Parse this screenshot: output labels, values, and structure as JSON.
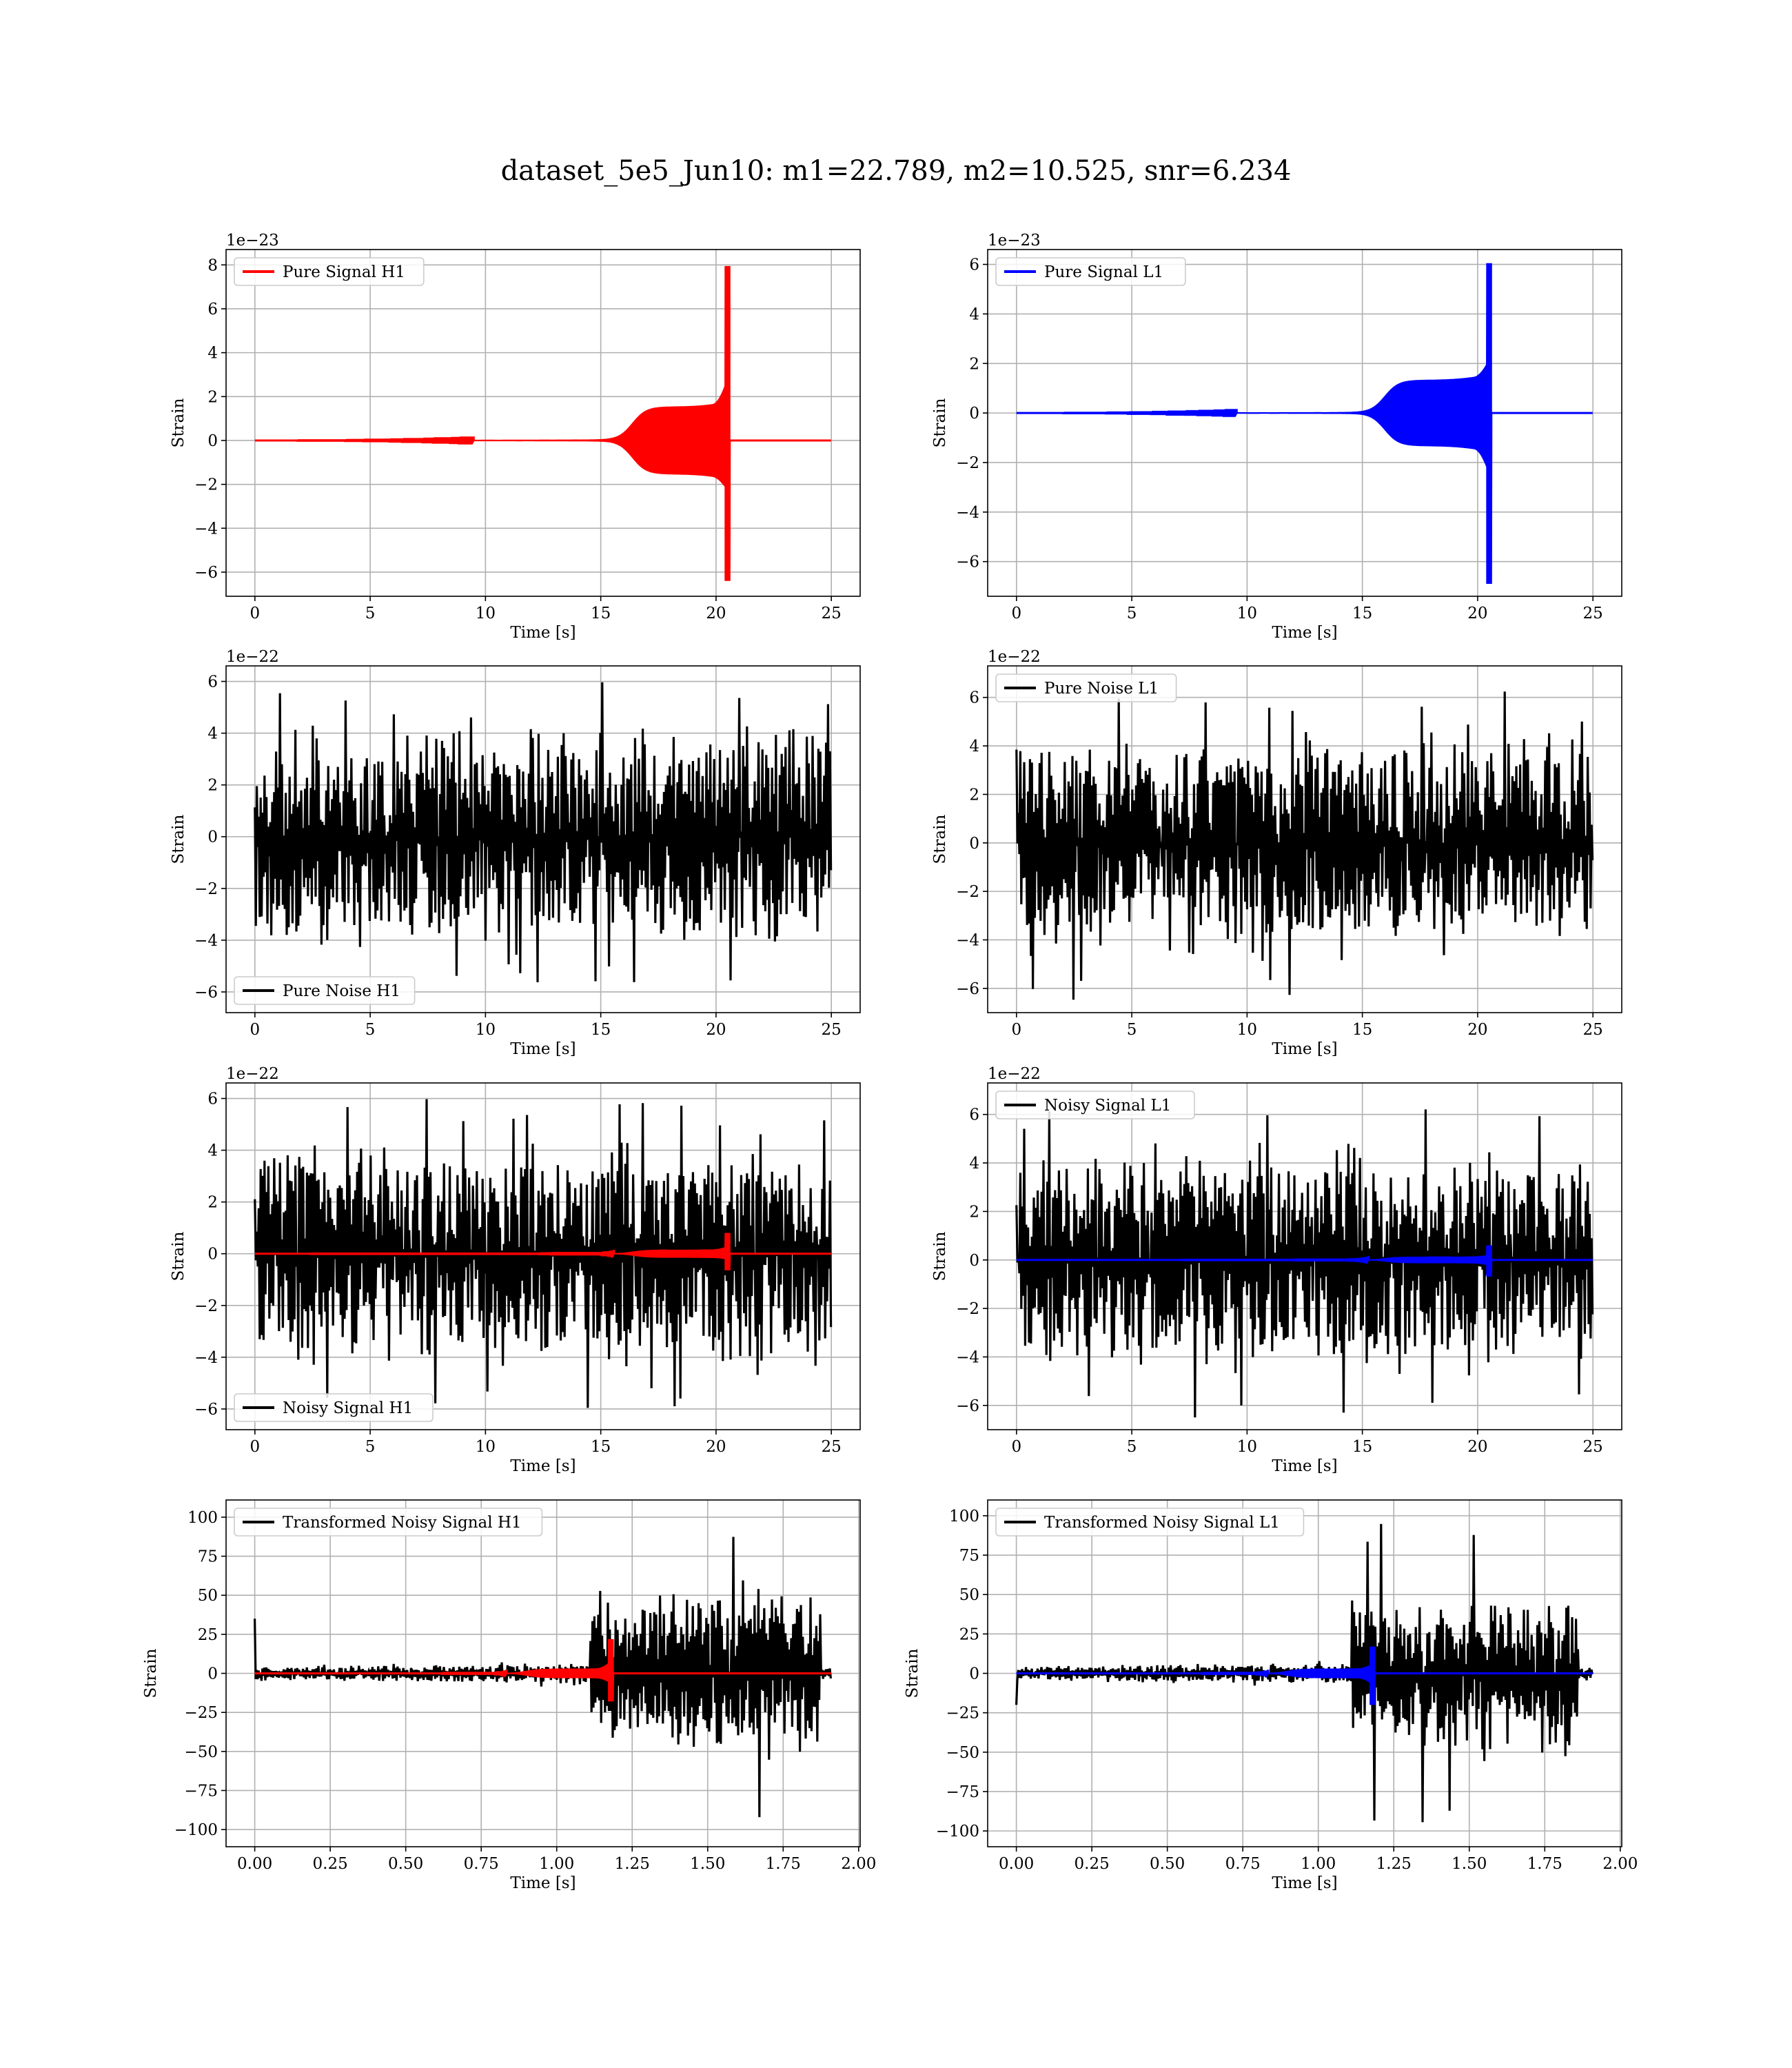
{
  "title": "dataset_5e5_Jun10: m1=22.789, m2=10.525, snr=6.234",
  "colors": {
    "h1_signal": "#ff0000",
    "l1_signal": "#0000ff",
    "noise": "#000000",
    "grid": "#b0b0b0"
  },
  "chart_data": [
    {
      "type": "line",
      "detector": "H1",
      "legend": "Pure Signal H1",
      "legend_loc": "upper left",
      "color": "#ff0000",
      "xlabel": "Time [s]",
      "ylabel": "Strain",
      "offset_label": "1e−23",
      "xlim": [
        -1.25,
        26.25
      ],
      "ylim": [
        -7.1,
        8.7
      ],
      "xticks": [
        0,
        5,
        10,
        15,
        20,
        25
      ],
      "xtick_labels": [
        "0",
        "5",
        "10",
        "15",
        "20",
        "25"
      ],
      "yticks": [
        -6,
        -4,
        -2,
        0,
        2,
        4,
        6,
        8
      ],
      "ytick_labels": [
        "−6",
        "−4",
        "−2",
        "0",
        "2",
        "4",
        "6",
        "8"
      ],
      "grid": true,
      "series": [
        {
          "kind": "chirp",
          "x_start": 0,
          "x_end": 25,
          "onset": 16.4,
          "merger": 20.5,
          "amp_plateau": 1.5,
          "peak_pos": 7.95,
          "peak_neg": -6.4,
          "color": "#ff0000"
        }
      ]
    },
    {
      "type": "line",
      "detector": "L1",
      "legend": "Pure Signal L1",
      "legend_loc": "upper left",
      "color": "#0000ff",
      "xlabel": "Time [s]",
      "ylabel": "Strain",
      "offset_label": "1e−23",
      "xlim": [
        -1.25,
        26.25
      ],
      "ylim": [
        -7.4,
        6.6
      ],
      "xticks": [
        0,
        5,
        10,
        15,
        20,
        25
      ],
      "xtick_labels": [
        "0",
        "5",
        "10",
        "15",
        "20",
        "25"
      ],
      "yticks": [
        -6,
        -4,
        -2,
        0,
        2,
        4,
        6
      ],
      "ytick_labels": [
        "−6",
        "−4",
        "−2",
        "0",
        "2",
        "4",
        "6"
      ],
      "grid": true,
      "series": [
        {
          "kind": "chirp",
          "x_start": 0,
          "x_end": 25,
          "onset": 16.0,
          "merger": 20.5,
          "amp_plateau": 1.3,
          "peak_pos": 6.05,
          "peak_neg": -6.9,
          "color": "#0000ff"
        }
      ]
    },
    {
      "type": "line",
      "detector": "H1",
      "legend": "Pure Noise H1",
      "legend_loc": "lower left",
      "color": "#000000",
      "xlabel": "Time [s]",
      "ylabel": "Strain",
      "offset_label": "1e−22",
      "xlim": [
        -1.25,
        26.25
      ],
      "ylim": [
        -6.8,
        6.6
      ],
      "xticks": [
        0,
        5,
        10,
        15,
        20,
        25
      ],
      "xtick_labels": [
        "0",
        "5",
        "10",
        "15",
        "20",
        "25"
      ],
      "yticks": [
        -6,
        -4,
        -2,
        0,
        2,
        4,
        6
      ],
      "ytick_labels": [
        "−6",
        "−4",
        "−2",
        "0",
        "2",
        "4",
        "6"
      ],
      "grid": true,
      "series": [
        {
          "kind": "noise",
          "x_start": 0,
          "x_end": 25,
          "upper": 6.0,
          "lower": -6.3,
          "color": "#000000"
        }
      ]
    },
    {
      "type": "line",
      "detector": "L1",
      "legend": "Pure Noise L1",
      "legend_loc": "upper left",
      "color": "#000000",
      "xlabel": "Time [s]",
      "ylabel": "Strain",
      "offset_label": "1e−22",
      "xlim": [
        -1.25,
        26.25
      ],
      "ylim": [
        -7.0,
        7.3
      ],
      "xticks": [
        0,
        5,
        10,
        15,
        20,
        25
      ],
      "xtick_labels": [
        "0",
        "5",
        "10",
        "15",
        "20",
        "25"
      ],
      "yticks": [
        -6,
        -4,
        -2,
        0,
        2,
        4,
        6
      ],
      "ytick_labels": [
        "−6",
        "−4",
        "−2",
        "0",
        "2",
        "4",
        "6"
      ],
      "grid": true,
      "series": [
        {
          "kind": "noise",
          "x_start": 0,
          "x_end": 25,
          "upper": 6.5,
          "lower": -6.5,
          "color": "#000000"
        }
      ]
    },
    {
      "type": "line",
      "detector": "H1",
      "legend": "Noisy Signal H1",
      "legend_loc": "lower left",
      "color": "#000000",
      "xlabel": "Time [s]",
      "ylabel": "Strain",
      "offset_label": "1e−22",
      "xlim": [
        -1.25,
        26.25
      ],
      "ylim": [
        -6.8,
        6.6
      ],
      "xticks": [
        0,
        5,
        10,
        15,
        20,
        25
      ],
      "xtick_labels": [
        "0",
        "5",
        "10",
        "15",
        "20",
        "25"
      ],
      "yticks": [
        -6,
        -4,
        -2,
        0,
        2,
        4,
        6
      ],
      "ytick_labels": [
        "−6",
        "−4",
        "−2",
        "0",
        "2",
        "4",
        "6"
      ],
      "grid": true,
      "series": [
        {
          "kind": "noise",
          "x_start": 0,
          "x_end": 25,
          "upper": 6.0,
          "lower": -6.3,
          "color": "#000000"
        },
        {
          "kind": "chirp",
          "x_start": 0,
          "x_end": 25,
          "onset": 16.4,
          "merger": 20.5,
          "amp_plateau": 0.15,
          "peak_pos": 0.8,
          "peak_neg": -0.64,
          "color": "#ff0000"
        }
      ]
    },
    {
      "type": "line",
      "detector": "L1",
      "legend": "Noisy Signal L1",
      "legend_loc": "upper left",
      "color": "#000000",
      "xlabel": "Time [s]",
      "ylabel": "Strain",
      "offset_label": "1e−22",
      "xlim": [
        -1.25,
        26.25
      ],
      "ylim": [
        -7.0,
        7.3
      ],
      "xticks": [
        0,
        5,
        10,
        15,
        20,
        25
      ],
      "xtick_labels": [
        "0",
        "5",
        "10",
        "15",
        "20",
        "25"
      ],
      "yticks": [
        -6,
        -4,
        -2,
        0,
        2,
        4,
        6
      ],
      "ytick_labels": [
        "−6",
        "−4",
        "−2",
        "0",
        "2",
        "4",
        "6"
      ],
      "grid": true,
      "series": [
        {
          "kind": "noise",
          "x_start": 0,
          "x_end": 25,
          "upper": 6.5,
          "lower": -6.5,
          "color": "#000000"
        },
        {
          "kind": "chirp",
          "x_start": 0,
          "x_end": 25,
          "onset": 16.0,
          "merger": 20.5,
          "amp_plateau": 0.13,
          "peak_pos": 0.6,
          "peak_neg": -0.69,
          "color": "#0000ff"
        }
      ]
    },
    {
      "type": "line",
      "detector": "H1",
      "legend": "Transformed Noisy Signal H1",
      "legend_loc": "upper left",
      "color": "#000000",
      "xlabel": "Time [s]",
      "ylabel": "Strain",
      "offset_label": "",
      "xlim": [
        -0.095,
        2.005
      ],
      "ylim": [
        -111,
        111
      ],
      "xticks": [
        0,
        0.25,
        0.5,
        0.75,
        1.0,
        1.25,
        1.5,
        1.75,
        2.0
      ],
      "xtick_labels": [
        "0.00",
        "0.25",
        "0.50",
        "0.75",
        "1.00",
        "1.25",
        "1.50",
        "1.75",
        "2.00"
      ],
      "yticks": [
        -100,
        -75,
        -50,
        -25,
        0,
        25,
        50,
        75,
        100
      ],
      "ytick_labels": [
        "−100",
        "−75",
        "−50",
        "−25",
        "0",
        "25",
        "50",
        "75",
        "100"
      ],
      "grid": true,
      "series": [
        {
          "kind": "transformed",
          "x_start": 0,
          "x_end": 1.91,
          "burst_start": 1.11,
          "burst_end": 1.875,
          "quiet_amp": 10,
          "burst_amp": 100,
          "spike_at_start": 35,
          "color": "#000000"
        },
        {
          "kind": "chirp",
          "x_start": 0,
          "x_end": 1.91,
          "onset": 0.9,
          "merger": 1.18,
          "amp_plateau": 3,
          "peak_pos": 22,
          "peak_neg": -18,
          "color": "#ff0000"
        }
      ]
    },
    {
      "type": "line",
      "detector": "L1",
      "legend": "Transformed Noisy Signal L1",
      "legend_loc": "upper left",
      "color": "#000000",
      "xlabel": "Time [s]",
      "ylabel": "Strain",
      "offset_label": "",
      "xlim": [
        -0.095,
        2.005
      ],
      "ylim": [
        -110,
        110
      ],
      "xticks": [
        0,
        0.25,
        0.5,
        0.75,
        1.0,
        1.25,
        1.5,
        1.75,
        2.0
      ],
      "xtick_labels": [
        "0.00",
        "0.25",
        "0.50",
        "0.75",
        "1.00",
        "1.25",
        "1.50",
        "1.75",
        "2.00"
      ],
      "yticks": [
        -100,
        -75,
        -50,
        -25,
        0,
        25,
        50,
        75,
        100
      ],
      "ytick_labels": [
        "−100",
        "−75",
        "−50",
        "−25",
        "0",
        "25",
        "50",
        "75",
        "100"
      ],
      "grid": true,
      "series": [
        {
          "kind": "transformed",
          "x_start": 0,
          "x_end": 1.91,
          "burst_start": 1.11,
          "burst_end": 1.86,
          "quiet_amp": 10,
          "burst_amp": 97,
          "spike_at_start": -20,
          "color": "#000000"
        },
        {
          "kind": "chirp",
          "x_start": 0,
          "x_end": 1.91,
          "onset": 0.9,
          "merger": 1.18,
          "amp_plateau": 3,
          "peak_pos": 17,
          "peak_neg": -20,
          "color": "#0000ff"
        }
      ]
    }
  ]
}
